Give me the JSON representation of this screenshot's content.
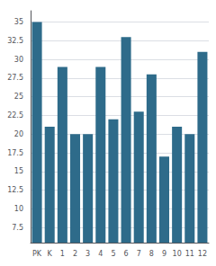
{
  "chart_data": {
    "type": "bar",
    "categories": [
      "PK",
      "K",
      "1",
      "2",
      "3",
      "4",
      "5",
      "6",
      "7",
      "8",
      "9",
      "10",
      "11",
      "12"
    ],
    "values": [
      35,
      21,
      29,
      20,
      20,
      29,
      22,
      33,
      23,
      28,
      17,
      21,
      20,
      31
    ],
    "color": "#2e6b8a",
    "ylim": [
      5.5,
      36.5
    ],
    "yticks": [
      7.5,
      10,
      12.5,
      15,
      17.5,
      20,
      22.5,
      25,
      27.5,
      30,
      32.5,
      35
    ],
    "grid": true
  }
}
